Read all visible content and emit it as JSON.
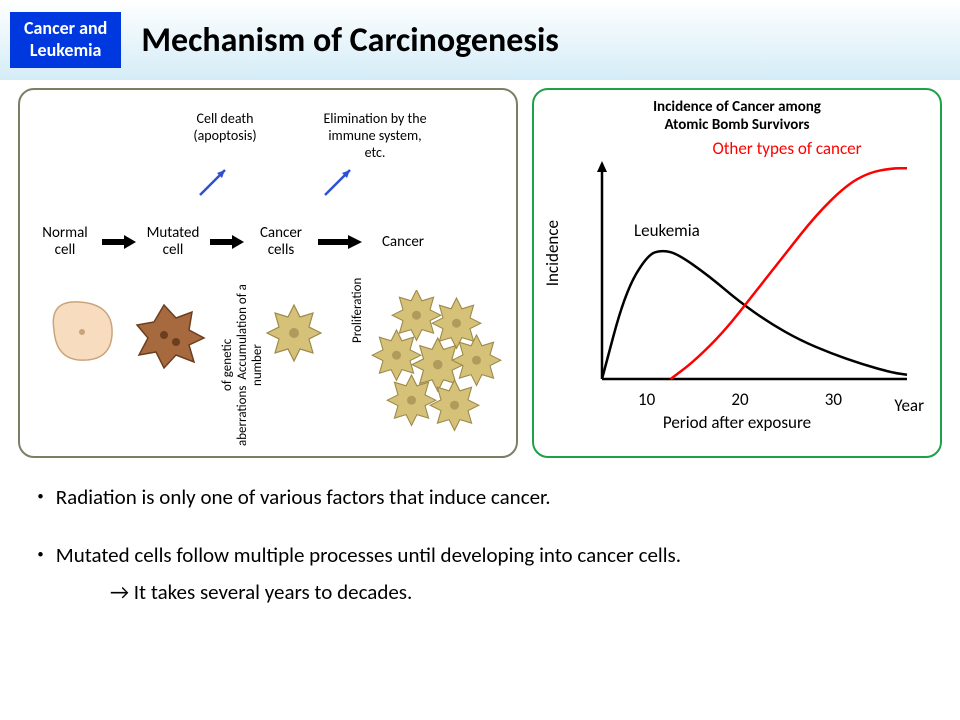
{
  "header": {
    "badge_line1": "Cancer and",
    "badge_line2": "Leukemia",
    "title": "Mechanism of Carcinogenesis",
    "badge_bg": "#0038e0",
    "badge_text_color": "#ffffff"
  },
  "left_panel": {
    "border_color": "#7a8063",
    "top_label_1a": "Cell death",
    "top_label_1b": "(apoptosis)",
    "top_label_2a": "Elimination by the",
    "top_label_2b": "immune system, etc.",
    "blue_arrow_color": "#2e4fd6",
    "stages": {
      "s1a": "Normal",
      "s1b": "cell",
      "s2a": "Mutated",
      "s2b": "cell",
      "s3a": "Cancer",
      "s3b": "cells",
      "s4": "Cancer"
    },
    "vlabel_1a": "Accumulation of a number",
    "vlabel_1b": "of genetic aberrations",
    "vlabel_2": "Proliferation",
    "horiz_arrow_color": "#000000",
    "cells": {
      "normal_fill": "#f8dcc0",
      "normal_stroke": "#c9a47a",
      "mutated_fill": "#a76a3f",
      "mutated_stroke": "#6b3e1e",
      "cancer_fill": "#d5c178",
      "cancer_stroke": "#9c8a4a",
      "nucleus_fill": "#b09a5c"
    }
  },
  "right_panel": {
    "border_color": "#1fa04a",
    "title_l1": "Incidence of Cancer among",
    "title_l2": "Atomic Bomb Survivors",
    "legend_other": "Other types of cancer",
    "leukemia_label": "Leukemia",
    "y_axis_label": "Incidence",
    "x_axis_label": "Period after exposure",
    "year_label": "Year",
    "x_ticks": [
      "10",
      "20",
      "30"
    ],
    "chart": {
      "type": "line",
      "axis_color": "#000000",
      "axis_width": 2.5,
      "xlim": [
        0,
        40
      ],
      "ylim": [
        0,
        100
      ],
      "leukemia": {
        "color": "#000000",
        "width": 2.5,
        "points": [
          [
            0,
            0
          ],
          [
            3,
            40
          ],
          [
            6,
            58
          ],
          [
            8,
            60
          ],
          [
            10,
            58
          ],
          [
            14,
            48
          ],
          [
            18,
            36
          ],
          [
            22,
            26
          ],
          [
            26,
            18
          ],
          [
            30,
            12
          ],
          [
            34,
            7
          ],
          [
            38,
            3
          ],
          [
            40,
            2
          ]
        ]
      },
      "other": {
        "color": "#ff0000",
        "width": 2.5,
        "points": [
          [
            9,
            0
          ],
          [
            12,
            8
          ],
          [
            16,
            22
          ],
          [
            20,
            40
          ],
          [
            24,
            58
          ],
          [
            28,
            76
          ],
          [
            32,
            90
          ],
          [
            35,
            96
          ],
          [
            38,
            98
          ],
          [
            40,
            98
          ]
        ]
      }
    }
  },
  "bullets": {
    "b1": "・ Radiation is only one of various factors that induce cancer.",
    "b2": "・ Mutated cells follow multiple processes until developing into cancer cells.",
    "b2sub": "→ It takes several years to decades."
  }
}
